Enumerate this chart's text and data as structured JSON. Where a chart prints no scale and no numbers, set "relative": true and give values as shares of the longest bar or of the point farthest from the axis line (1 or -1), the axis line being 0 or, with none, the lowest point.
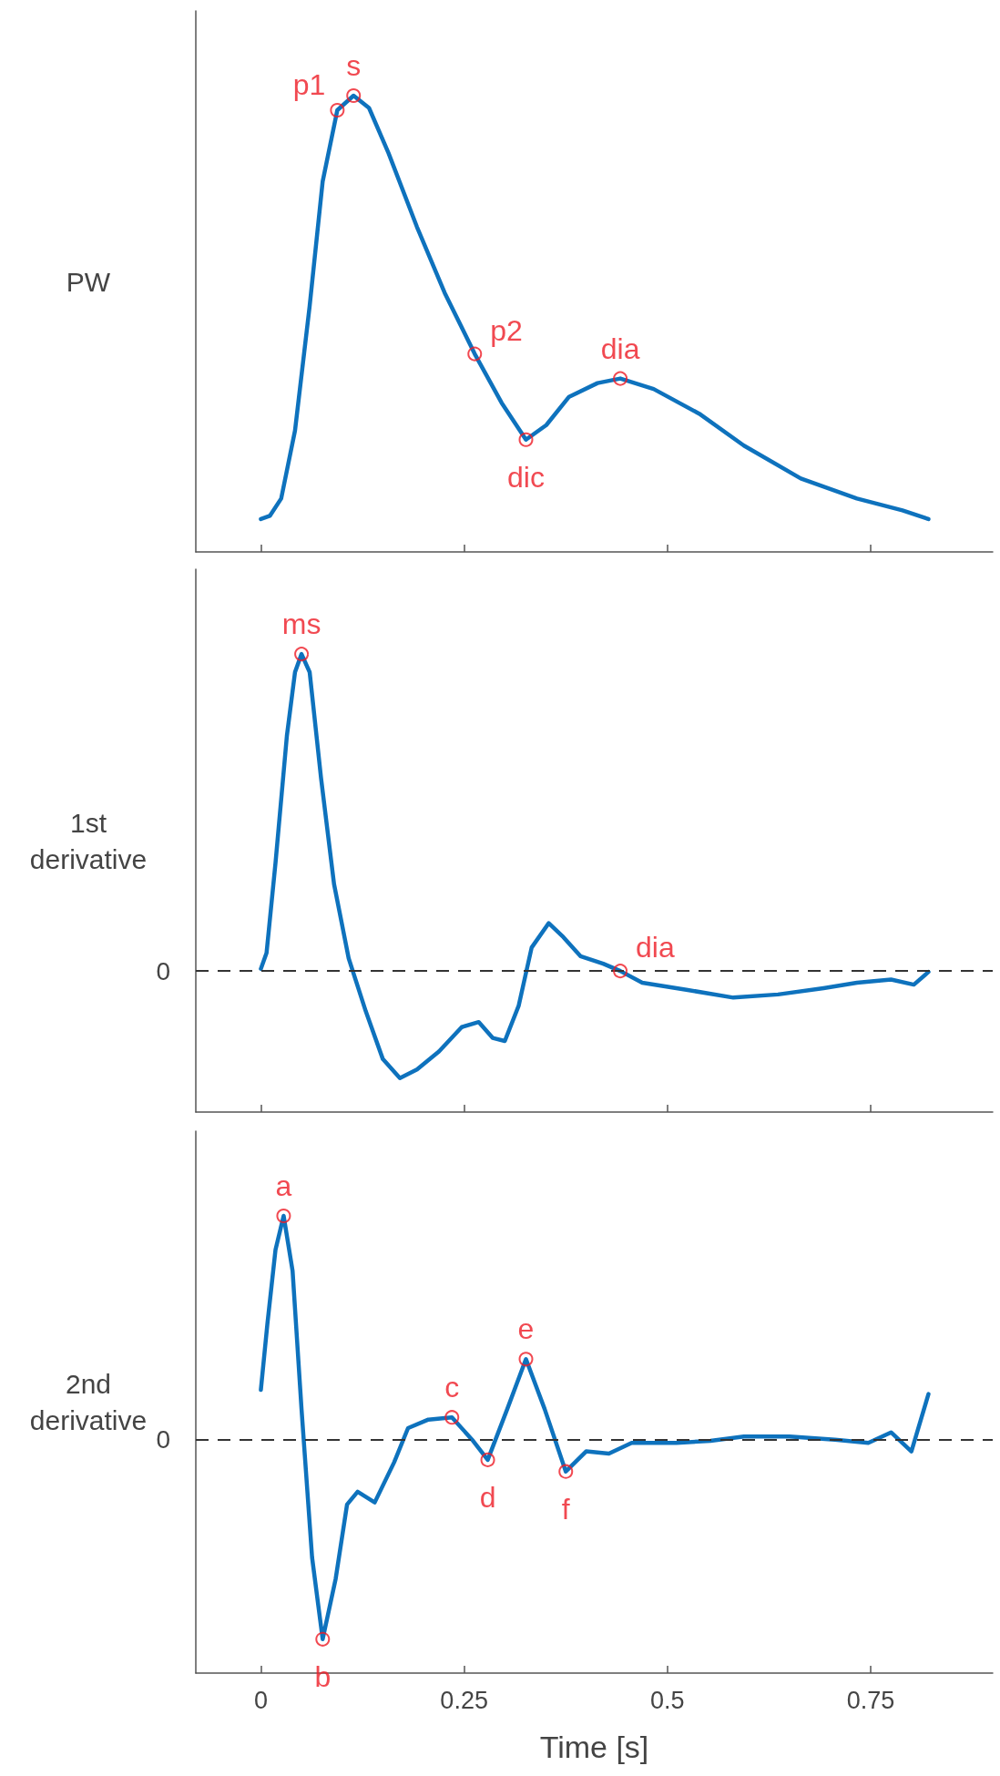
{
  "chart_data": [
    {
      "type": "line",
      "relative": true,
      "ylabel": "PW",
      "xlim": [
        -0.08,
        0.9
      ],
      "xticks": [
        0,
        0.25,
        0.5,
        0.75
      ],
      "tick_labels": false,
      "grid": false,
      "marker": "none",
      "series": [
        {
          "color": "#0e72bd",
          "x": [
            0,
            0.011,
            0.025,
            0.042,
            0.06,
            0.076,
            0.094,
            0.114,
            0.133,
            0.157,
            0.192,
            0.226,
            0.263,
            0.296,
            0.326,
            0.351,
            0.379,
            0.414,
            0.442,
            0.483,
            0.539,
            0.594,
            0.664,
            0.733,
            0.789,
            0.821
          ],
          "values": [
            0.072,
            0.079,
            0.117,
            0.266,
            0.539,
            0.812,
            0.968,
            1.0,
            0.973,
            0.874,
            0.712,
            0.568,
            0.434,
            0.327,
            0.246,
            0.278,
            0.34,
            0.37,
            0.38,
            0.357,
            0.303,
            0.233,
            0.161,
            0.117,
            0.091,
            0.072
          ]
        }
      ],
      "annotations": [
        {
          "text": "p1",
          "x": 0.094,
          "y": 0.968
        },
        {
          "text": "s",
          "x": 0.114,
          "y": 1.0
        },
        {
          "text": "p2",
          "x": 0.263,
          "y": 0.434
        },
        {
          "text": "dic",
          "x": 0.326,
          "y": 0.246
        },
        {
          "text": "dia",
          "x": 0.442,
          "y": 0.38
        }
      ]
    },
    {
      "type": "line",
      "relative": true,
      "ylabel": "1st derivative",
      "xlim": [
        -0.08,
        0.9
      ],
      "xticks": [
        0,
        0.25,
        0.5,
        0.75
      ],
      "tick_labels": false,
      "grid": false,
      "marker": "none",
      "ref_lines": [
        {
          "axis": "y",
          "value": 0,
          "label": "0",
          "line_style": "dashed"
        }
      ],
      "series": [
        {
          "color": "#0e72bd",
          "x": [
            0,
            0.007,
            0.018,
            0.032,
            0.042,
            0.05,
            0.06,
            0.074,
            0.09,
            0.108,
            0.129,
            0.15,
            0.171,
            0.192,
            0.219,
            0.247,
            0.268,
            0.285,
            0.3,
            0.317,
            0.333,
            0.354,
            0.372,
            0.393,
            0.421,
            0.442,
            0.469,
            0.525,
            0.581,
            0.636,
            0.692,
            0.733,
            0.775,
            0.803,
            0.821
          ],
          "values": [
            0.007,
            0.057,
            0.341,
            0.742,
            0.943,
            1.0,
            0.943,
            0.609,
            0.274,
            0.04,
            -0.127,
            -0.278,
            -0.338,
            -0.311,
            -0.254,
            -0.177,
            -0.161,
            -0.211,
            -0.221,
            -0.11,
            0.074,
            0.151,
            0.107,
            0.047,
            0.023,
            0,
            -0.037,
            -0.06,
            -0.084,
            -0.074,
            -0.054,
            -0.037,
            -0.027,
            -0.043,
            -0.003
          ]
        }
      ],
      "annotations": [
        {
          "text": "ms",
          "x": 0.05,
          "y": 1.0
        },
        {
          "text": "dia",
          "x": 0.442,
          "y": 0
        }
      ]
    },
    {
      "type": "line",
      "relative": true,
      "ylabel": "2nd derivative",
      "xlabel": "Time [s]",
      "xlim": [
        -0.08,
        0.9
      ],
      "xticks": [
        0,
        0.25,
        0.5,
        0.75
      ],
      "tick_labels": "x",
      "grid": false,
      "marker": "none",
      "ref_lines": [
        {
          "axis": "y",
          "value": 0,
          "label": "0",
          "line_style": "dashed"
        }
      ],
      "series": [
        {
          "color": "#0e72bd",
          "x": [
            0,
            0.008,
            0.018,
            0.028,
            0.039,
            0.05,
            0.063,
            0.076,
            0.092,
            0.106,
            0.119,
            0.14,
            0.164,
            0.181,
            0.206,
            0.235,
            0.261,
            0.279,
            0.303,
            0.326,
            0.349,
            0.375,
            0.4,
            0.428,
            0.456,
            0.511,
            0.553,
            0.594,
            0.65,
            0.706,
            0.747,
            0.775,
            0.8,
            0.821
          ],
          "values": [
            0.223,
            0.517,
            0.848,
            1.0,
            0.754,
            0.137,
            -0.526,
            -0.891,
            -0.621,
            -0.289,
            -0.232,
            -0.28,
            -0.1,
            0.052,
            0.09,
            0.1,
            -0.005,
            -0.09,
            0.137,
            0.36,
            0.137,
            -0.142,
            -0.052,
            -0.062,
            -0.014,
            -0.014,
            -0.005,
            0.014,
            0.014,
            0,
            -0.014,
            0.033,
            -0.052,
            0.204
          ]
        }
      ],
      "annotations": [
        {
          "text": "a",
          "x": 0.028,
          "y": 1.0
        },
        {
          "text": "b",
          "x": 0.076,
          "y": -0.891
        },
        {
          "text": "c",
          "x": 0.235,
          "y": 0.1
        },
        {
          "text": "d",
          "x": 0.279,
          "y": -0.09
        },
        {
          "text": "e",
          "x": 0.326,
          "y": 0.36
        },
        {
          "text": "f",
          "x": 0.375,
          "y": -0.142
        }
      ]
    }
  ]
}
